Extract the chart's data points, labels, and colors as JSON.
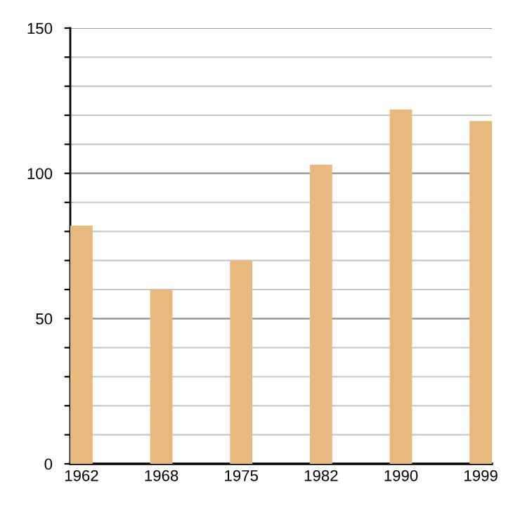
{
  "chart_data": {
    "type": "bar",
    "categories": [
      "1962",
      "1968",
      "1975",
      "1982",
      "1990",
      "1999"
    ],
    "values": [
      82,
      60,
      70,
      103,
      122,
      118
    ],
    "color": "#e8b97e",
    "ylim": [
      0,
      150
    ],
    "yticks": [
      0,
      {
        "value": 10,
        "label": null
      },
      {
        "value": 20,
        "label": null
      },
      {
        "value": 30,
        "label": null
      },
      {
        "value": 40,
        "label": null
      },
      50,
      {
        "value": 60,
        "label": null
      },
      {
        "value": 70,
        "label": null
      },
      {
        "value": 80,
        "label": null
      },
      {
        "value": 90,
        "label": null
      },
      100,
      {
        "value": 110,
        "label": null
      },
      {
        "value": 120,
        "label": null
      },
      {
        "value": 130,
        "label": null
      },
      {
        "value": 140,
        "label": null
      },
      150
    ],
    "grid": "y"
  }
}
